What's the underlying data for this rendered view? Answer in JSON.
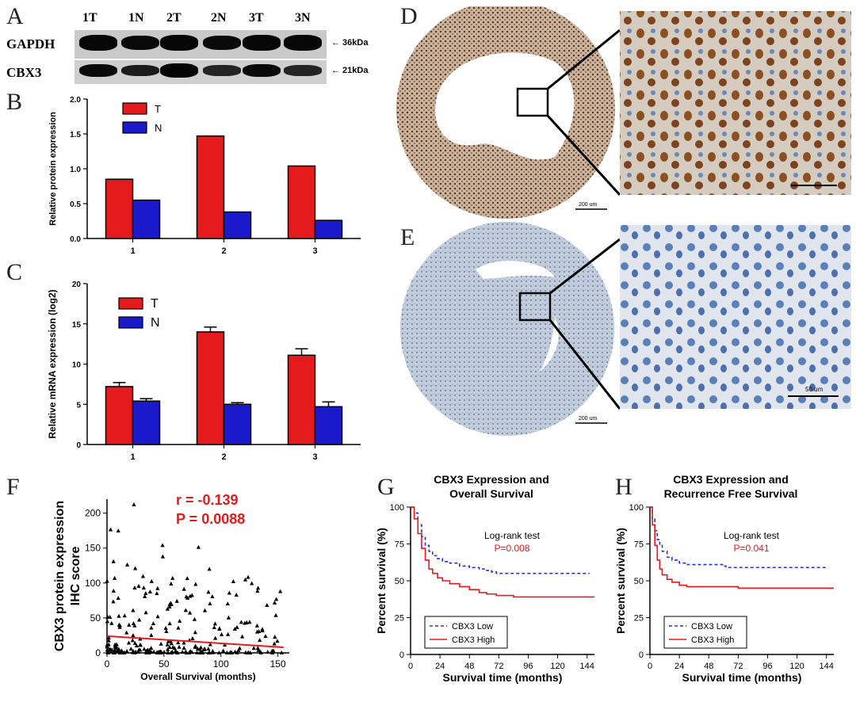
{
  "panels": {
    "A": "A",
    "B": "B",
    "C": "C",
    "D": "D",
    "E": "E",
    "F": "F",
    "G": "G",
    "H": "H"
  },
  "western": {
    "lanes": [
      "1T",
      "1N",
      "2T",
      "2N",
      "3T",
      "3N"
    ],
    "rows": [
      {
        "name": "GAPDH",
        "marker": "← 36kDa",
        "intensity": [
          0.9,
          0.85,
          0.9,
          0.85,
          0.9,
          0.88
        ]
      },
      {
        "name": "CBX3",
        "marker": "← 21kDa",
        "intensity": [
          0.85,
          0.55,
          0.95,
          0.4,
          0.85,
          0.4
        ]
      }
    ]
  },
  "ihc": {
    "scale_big": "200 um",
    "scale_small": "50 um"
  },
  "chart_data": [
    {
      "id": "B",
      "type": "bar",
      "title": "",
      "categories": [
        "1",
        "2",
        "3"
      ],
      "series": [
        {
          "name": "T",
          "color": "#e41a1c",
          "values": [
            0.85,
            1.47,
            1.04
          ]
        },
        {
          "name": "N",
          "color": "#1a1acc",
          "values": [
            0.55,
            0.38,
            0.26
          ]
        }
      ],
      "ylabel": "Relative protein expression",
      "ylim": [
        0,
        2.0
      ],
      "yticks": [
        "0.0",
        "0.5",
        "1.0",
        "1.5",
        "2.0"
      ]
    },
    {
      "id": "C",
      "type": "bar",
      "title": "",
      "categories": [
        "1",
        "2",
        "3"
      ],
      "series": [
        {
          "name": "T",
          "color": "#e41a1c",
          "values": [
            7.2,
            14.0,
            11.1
          ],
          "errors": [
            0.5,
            0.6,
            0.8
          ]
        },
        {
          "name": "N",
          "color": "#1a1acc",
          "values": [
            5.4,
            5.0,
            4.7
          ],
          "errors": [
            0.3,
            0.2,
            0.6
          ]
        }
      ],
      "ylabel": "Relative mRNA expression (log2)",
      "ylim": [
        0,
        20
      ],
      "yticks": [
        "0",
        "5",
        "10",
        "15",
        "20"
      ]
    },
    {
      "id": "F",
      "type": "scatter",
      "xlabel": "Overall Survival (months)",
      "ylabel": "CBX3 protein expression",
      "ylabel2": "IHC score",
      "xlim": [
        0,
        160
      ],
      "ylim": [
        0,
        220
      ],
      "xticks": [
        "0",
        "50",
        "100",
        "150"
      ],
      "yticks": [
        "0",
        "50",
        "100",
        "150",
        "200"
      ],
      "annotation_r": "r  = -0.139",
      "annotation_p": "P = 0.0088",
      "trend": [
        [
          0,
          24
        ],
        [
          155,
          8
        ]
      ]
    },
    {
      "id": "G",
      "type": "line",
      "title_line1": "CBX3 Expression and",
      "title_line2": "Overall Survival",
      "xlabel": "Survival time (months)",
      "ylabel": "Percent survival (%)",
      "xlim": [
        0,
        150
      ],
      "ylim": [
        0,
        100
      ],
      "xticks": [
        "0",
        "24",
        "48",
        "72",
        "96",
        "120",
        "144"
      ],
      "yticks": [
        "0",
        "25",
        "50",
        "75",
        "100"
      ],
      "test": "Log-rank test",
      "pvalue": "P=0.008",
      "series": [
        {
          "name": "CBX3 Low",
          "color": "#2233dd",
          "dashed": true,
          "points": [
            [
              0,
              100
            ],
            [
              3,
              96
            ],
            [
              6,
              88
            ],
            [
              9,
              80
            ],
            [
              12,
              74
            ],
            [
              15,
              70
            ],
            [
              18,
              67
            ],
            [
              22,
              65
            ],
            [
              26,
              63
            ],
            [
              32,
              62
            ],
            [
              40,
              60
            ],
            [
              48,
              59
            ],
            [
              56,
              58
            ],
            [
              62,
              57
            ],
            [
              66,
              56
            ],
            [
              70,
              55
            ],
            [
              80,
              55
            ],
            [
              146,
              55
            ]
          ]
        },
        {
          "name": "CBX3 High",
          "color": "#e41a1c",
          "dashed": false,
          "points": [
            [
              0,
              100
            ],
            [
              3,
              92
            ],
            [
              6,
              82
            ],
            [
              9,
              72
            ],
            [
              12,
              64
            ],
            [
              15,
              58
            ],
            [
              18,
              55
            ],
            [
              22,
              52
            ],
            [
              26,
              50
            ],
            [
              32,
              48
            ],
            [
              40,
              46
            ],
            [
              48,
              44
            ],
            [
              56,
              42
            ],
            [
              62,
              41
            ],
            [
              70,
              40
            ],
            [
              84,
              39
            ],
            [
              150,
              39
            ]
          ]
        }
      ]
    },
    {
      "id": "H",
      "type": "line",
      "title_line1": "CBX3 Expression and",
      "title_line2": "Recurrence Free Survival",
      "xlabel": "Survival time (months)",
      "ylabel": "Percent survival (%)",
      "xlim": [
        0,
        150
      ],
      "ylim": [
        0,
        100
      ],
      "xticks": [
        "0",
        "24",
        "48",
        "72",
        "96",
        "120",
        "144"
      ],
      "yticks": [
        "0",
        "25",
        "50",
        "75",
        "100"
      ],
      "test": "Log-rank test",
      "pvalue": "P=0.041",
      "series": [
        {
          "name": "CBX3 Low",
          "color": "#2233dd",
          "dashed": true,
          "points": [
            [
              0,
              100
            ],
            [
              2,
              92
            ],
            [
              4,
              84
            ],
            [
              6,
              78
            ],
            [
              8,
              74
            ],
            [
              10,
              70
            ],
            [
              14,
              66
            ],
            [
              18,
              64
            ],
            [
              24,
              62
            ],
            [
              30,
              61
            ],
            [
              48,
              61
            ],
            [
              60,
              60
            ],
            [
              62,
              59
            ],
            [
              80,
              59
            ],
            [
              144,
              59
            ]
          ]
        },
        {
          "name": "CBX3 High",
          "color": "#e41a1c",
          "dashed": false,
          "points": [
            [
              0,
              100
            ],
            [
              2,
              88
            ],
            [
              4,
              74
            ],
            [
              6,
              64
            ],
            [
              8,
              58
            ],
            [
              10,
              54
            ],
            [
              14,
              51
            ],
            [
              18,
              49
            ],
            [
              24,
              47
            ],
            [
              30,
              46
            ],
            [
              48,
              46
            ],
            [
              72,
              45
            ],
            [
              150,
              45
            ]
          ]
        }
      ]
    }
  ]
}
